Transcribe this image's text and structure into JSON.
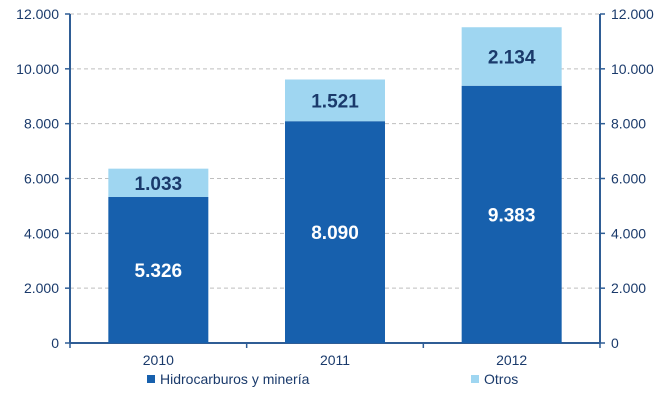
{
  "chart_data": {
    "type": "bar",
    "stacked": true,
    "categories": [
      "2010",
      "2011",
      "2012"
    ],
    "series": [
      {
        "name": "Hidrocarburos y minería",
        "values": [
          5326,
          8090,
          9383
        ],
        "labels": [
          "5.326",
          "8.090",
          "9.383"
        ],
        "color": "#1760ad",
        "label_color": "#ffffff"
      },
      {
        "name": "Otros",
        "values": [
          1033,
          1521,
          2134
        ],
        "labels": [
          "1.033",
          "1.521",
          "2.134"
        ],
        "color": "#9fd6f1",
        "label_color": "#1a3a6b"
      }
    ],
    "ylim": [
      0,
      12000
    ],
    "y_ticks": [
      0,
      2000,
      4000,
      6000,
      8000,
      10000,
      12000
    ],
    "y_tick_labels": [
      "0",
      "2.000",
      "4.000",
      "6.000",
      "8.000",
      "10.000",
      "12.000"
    ],
    "secondary_y_axis": true,
    "grid": "horizontal-dashed",
    "legend_position": "bottom",
    "axis_color": "#2f5d95",
    "grid_color": "#bfbfbf"
  }
}
